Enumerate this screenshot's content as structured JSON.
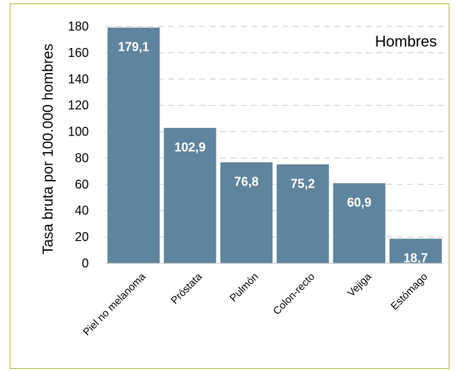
{
  "chart_data": {
    "type": "bar",
    "panel_label": "Hombres",
    "ylabel": "Tasa bruta por 100.000 hombres",
    "categories": [
      "Piel no melanoma",
      "Próstata",
      "Pulmón",
      "Colon-recto",
      "Vejiga",
      "Estómago"
    ],
    "values": [
      179.1,
      102.9,
      76.8,
      75.2,
      60.9,
      18.7
    ],
    "data_labels": [
      "179,1",
      "102,9",
      "76,8",
      "75,2",
      "60,9",
      "18,7"
    ],
    "ylim": [
      0,
      180
    ],
    "yticks": [
      0,
      20,
      40,
      60,
      80,
      100,
      120,
      140,
      160,
      180
    ],
    "grid": true,
    "bar_color": "#5f849d"
  }
}
